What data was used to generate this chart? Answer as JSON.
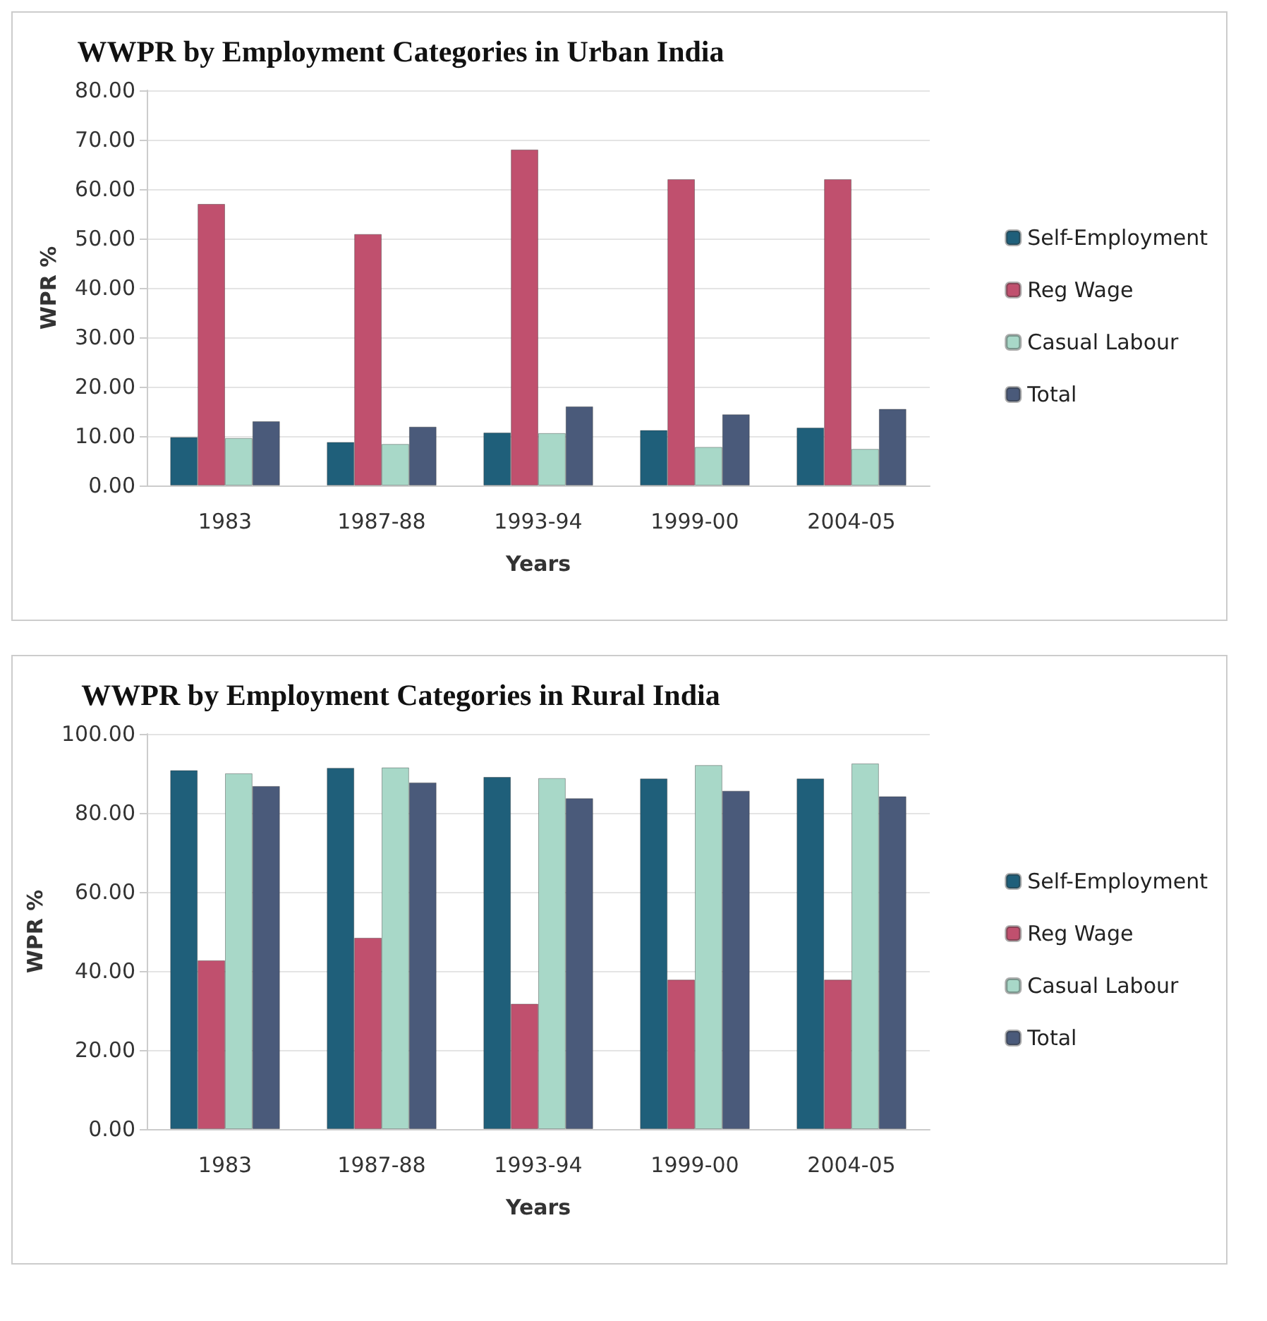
{
  "chart_data": [
    {
      "type": "bar",
      "title": "WWPR by Employment Categories in Urban India",
      "xlabel": "Years",
      "ylabel": "WPR %",
      "categories": [
        "1983",
        "1987-88",
        "1993-94",
        "1999-00",
        "2004-05"
      ],
      "series": [
        {
          "name": "Self-Employment",
          "color": "#1f5f7a",
          "values": [
            9.8,
            8.8,
            10.7,
            11.2,
            11.7
          ]
        },
        {
          "name": "Reg Wage",
          "color": "#c0506e",
          "values": [
            57,
            50.9,
            68,
            62,
            62
          ]
        },
        {
          "name": "Casual Labour",
          "color": "#a8d8c8",
          "values": [
            9.6,
            8.4,
            10.6,
            7.8,
            7.4
          ]
        },
        {
          "name": "Total",
          "color": "#4a5a7a",
          "values": [
            13,
            11.9,
            16,
            14.4,
            15.5
          ]
        }
      ],
      "ylim": [
        0,
        80
      ],
      "yticks": [
        {
          "value": 0,
          "label": "0.00"
        },
        {
          "value": 10,
          "label": "10.00"
        },
        {
          "value": 20,
          "label": "20.00"
        },
        {
          "value": 30,
          "label": "30.00"
        },
        {
          "value": 40,
          "label": "40.00"
        },
        {
          "value": 50,
          "label": "50.00"
        },
        {
          "value": 60,
          "label": "60.00"
        },
        {
          "value": 70,
          "label": "70.00"
        },
        {
          "value": 80,
          "label": "80.00"
        }
      ],
      "grid": "y",
      "legend": "right"
    },
    {
      "type": "bar",
      "title": "WWPR by Employment Categories in Rural India",
      "xlabel": "Years",
      "ylabel": "WPR %",
      "categories": [
        "1983",
        "1987-88",
        "1993-94",
        "1999-00",
        "2004-05"
      ],
      "series": [
        {
          "name": "Self-Employment",
          "color": "#1f5f7a",
          "values": [
            90.8,
            91.4,
            89.1,
            88.7,
            88.7
          ]
        },
        {
          "name": "Reg Wage",
          "color": "#c0506e",
          "values": [
            42.7,
            48.4,
            31.7,
            37.8,
            37.8
          ]
        },
        {
          "name": "Casual Labour",
          "color": "#a8d8c8",
          "values": [
            90,
            91.5,
            88.8,
            92.1,
            92.5
          ]
        },
        {
          "name": "Total",
          "color": "#4a5a7a",
          "values": [
            86.8,
            87.7,
            83.7,
            85.6,
            84.2
          ]
        }
      ],
      "ylim": [
        0,
        100
      ],
      "yticks": [
        {
          "value": 0,
          "label": "0.00"
        },
        {
          "value": 20,
          "label": "20.00"
        },
        {
          "value": 40,
          "label": "40.00"
        },
        {
          "value": 60,
          "label": "60.00"
        },
        {
          "value": 80,
          "label": "80.00"
        },
        {
          "value": 100,
          "label": "100.00"
        }
      ],
      "grid": "y",
      "legend": "right"
    }
  ]
}
